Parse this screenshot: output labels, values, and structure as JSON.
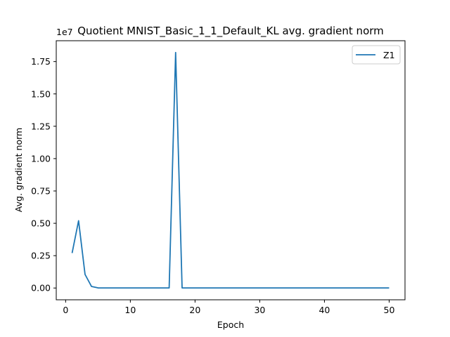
{
  "chart_data": {
    "type": "line",
    "title": "Quotient MNIST_Basic_1_1_Default_KL avg. gradient norm",
    "xlabel": "Epoch",
    "ylabel": "Avg. gradient norm",
    "y_offset_label": "1e7",
    "xlim": [
      -1.45,
      52.45
    ],
    "ylim": [
      -910000,
      19110000
    ],
    "x_ticks": [
      0,
      10,
      20,
      30,
      40,
      50
    ],
    "x_tick_labels": [
      "0",
      "10",
      "20",
      "30",
      "40",
      "50"
    ],
    "y_ticks": [
      0,
      2500000,
      5000000,
      7500000,
      10000000,
      12500000,
      15000000,
      17500000
    ],
    "y_tick_labels": [
      "0.00",
      "0.25",
      "0.50",
      "0.75",
      "1.00",
      "1.25",
      "1.50",
      "1.75"
    ],
    "grid": false,
    "legend_position": "top-right",
    "series": [
      {
        "name": "Z1",
        "color": "#1f77b4",
        "x": [
          1,
          2,
          3,
          4,
          5,
          6,
          7,
          8,
          9,
          10,
          11,
          12,
          13,
          14,
          15,
          16,
          17,
          18,
          19,
          20,
          21,
          22,
          23,
          24,
          25,
          26,
          27,
          28,
          29,
          30,
          31,
          32,
          33,
          34,
          35,
          36,
          37,
          38,
          39,
          40,
          41,
          42,
          43,
          44,
          45,
          46,
          47,
          48,
          49,
          50
        ],
        "values": [
          2700000,
          5200000,
          1050000,
          120000,
          10000,
          5000,
          5000,
          5000,
          5000,
          5000,
          5000,
          5000,
          5000,
          5000,
          5000,
          5000,
          18200000,
          5000,
          5000,
          5000,
          5000,
          5000,
          5000,
          5000,
          5000,
          5000,
          5000,
          5000,
          5000,
          5000,
          5000,
          5000,
          5000,
          5000,
          5000,
          5000,
          5000,
          5000,
          5000,
          5000,
          5000,
          5000,
          5000,
          5000,
          5000,
          5000,
          5000,
          5000,
          5000,
          5000
        ]
      }
    ]
  }
}
